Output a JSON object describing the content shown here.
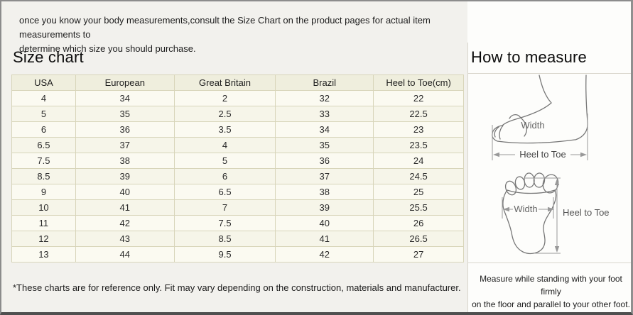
{
  "intro": {
    "lines": [
      "once you know your body measurements,consult the Size Chart on the product pages for actual item measurements to",
      "determine which size you should purchase."
    ]
  },
  "size_chart": {
    "title": "Size chart",
    "table": {
      "headers": [
        "USA",
        "European",
        "Great Britain",
        "Brazil",
        "Heel to Toe(cm)"
      ],
      "rows": [
        [
          "4",
          "34",
          "2",
          "32",
          "22"
        ],
        [
          "5",
          "35",
          "2.5",
          "33",
          "22.5"
        ],
        [
          "6",
          "36",
          "3.5",
          "34",
          "23"
        ],
        [
          "6.5",
          "37",
          "4",
          "35",
          "23.5"
        ],
        [
          "7.5",
          "38",
          "5",
          "36",
          "24"
        ],
        [
          "8.5",
          "39",
          "6",
          "37",
          "24.5"
        ],
        [
          "9",
          "40",
          "6.5",
          "38",
          "25"
        ],
        [
          "10",
          "41",
          "7",
          "39",
          "25.5"
        ],
        [
          "11",
          "42",
          "7.5",
          "40",
          "26"
        ],
        [
          "12",
          "43",
          "8.5",
          "41",
          "26.5"
        ],
        [
          "13",
          "44",
          "9.5",
          "42",
          "27"
        ]
      ]
    },
    "footnote": "*These charts are for reference only. Fit may vary depending on the construction, materials and manufacturer."
  },
  "how_to_measure": {
    "title": "How to measure",
    "side_view": {
      "width_label": "Width",
      "heel_to_toe_label": "Heel to Toe"
    },
    "sole_view": {
      "width_label": "Width",
      "heel_to_toe_label": "Heel to Toe"
    },
    "instruction_lines": [
      "Measure while standing with your foot firmly",
      "on the floor and parallel to your other foot."
    ]
  },
  "colors": {
    "left_panel_bg": "#f2f1ed",
    "right_panel_bg": "#fdfdfb",
    "table_header_bg": "#efeedd",
    "table_row_bg": "#fbfaf1",
    "table_row_alt_bg": "#f6f5e9",
    "table_border": "#d8d5ba",
    "divider": "#d9d6cc",
    "frame_border": "#8c8c8c",
    "text": "#222222",
    "diagram_line": "#777777"
  }
}
